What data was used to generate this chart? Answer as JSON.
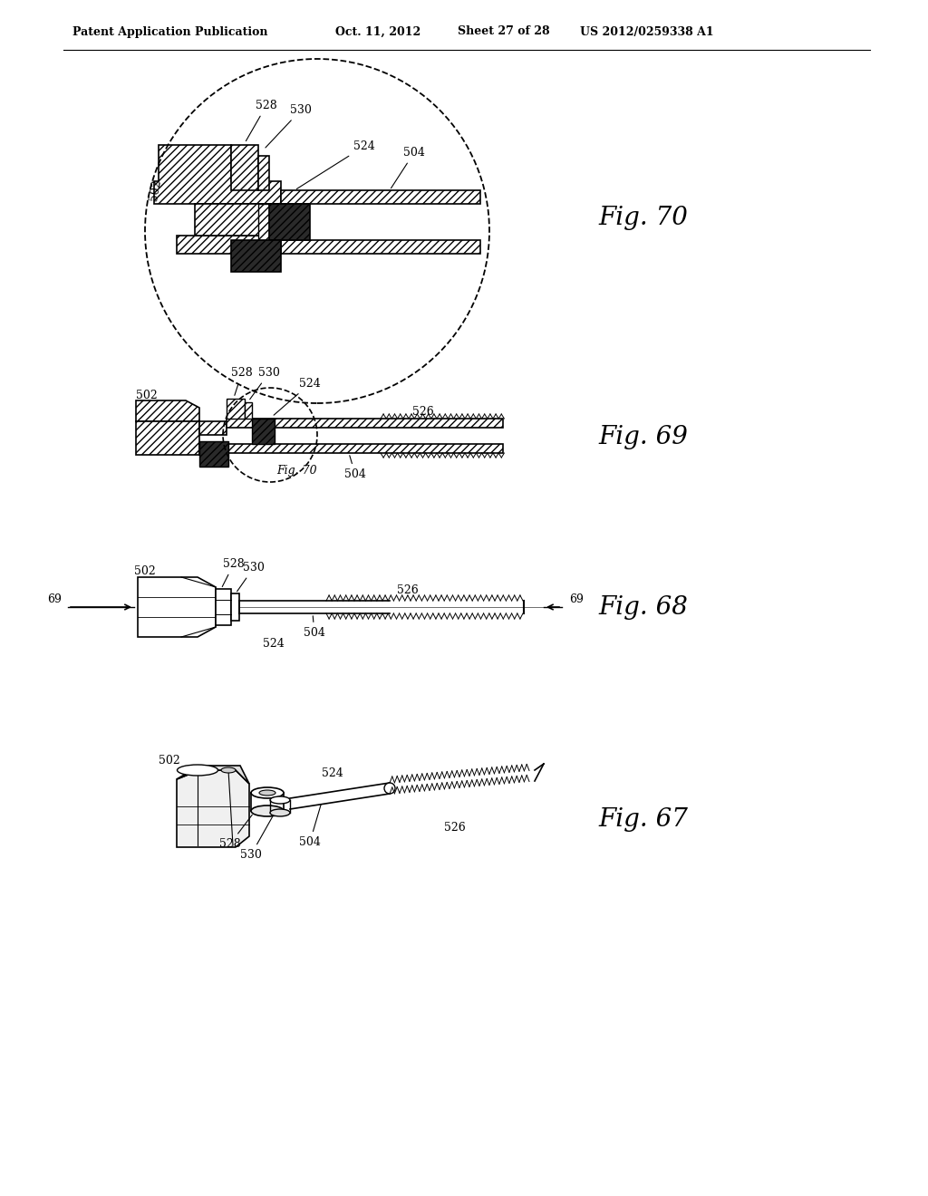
{
  "bg_color": "#ffffff",
  "header_text": "Patent Application Publication",
  "header_date": "Oct. 11, 2012",
  "header_sheet": "Sheet 27 of 28",
  "header_patent": "US 2012/0259338 A1",
  "line_color": "#000000",
  "dark_fill": "#2a2a2a",
  "light_fill": "#ffffff",
  "fig70_label": "Fig. 70",
  "fig69_label": "Fig. 69",
  "fig68_label": "Fig. 68",
  "fig67_label": "Fig. 67"
}
